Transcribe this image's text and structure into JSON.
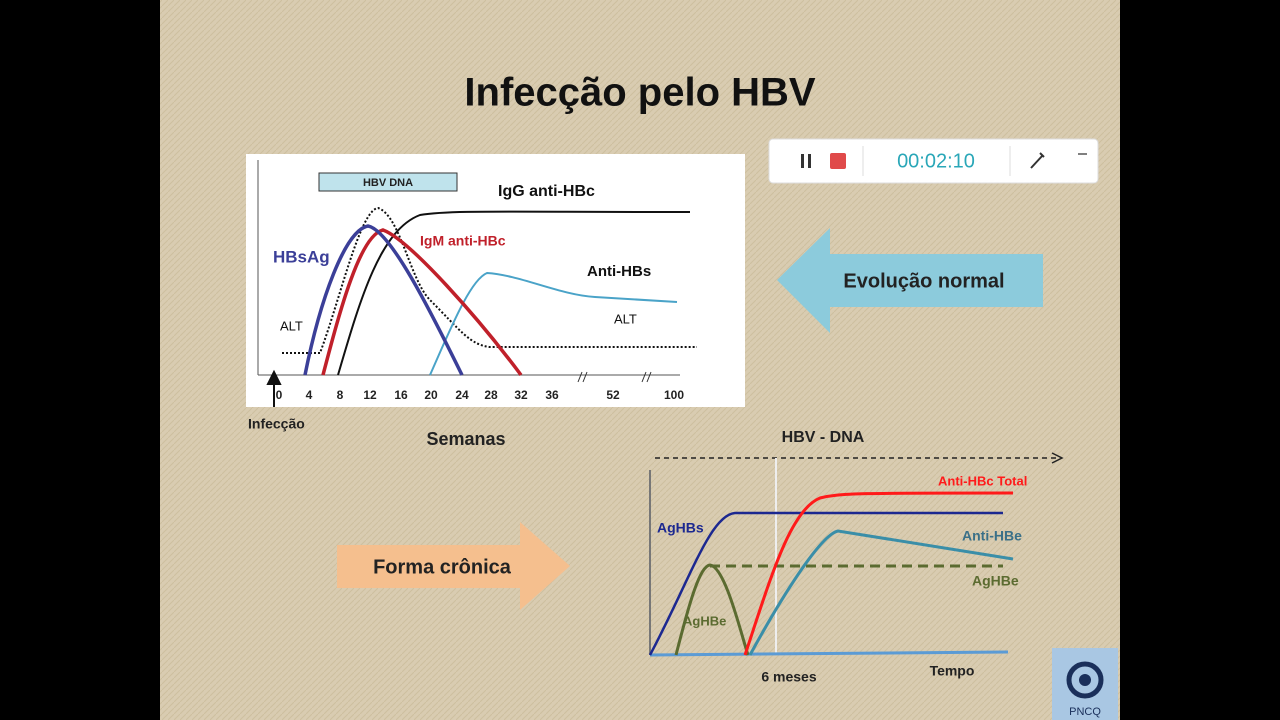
{
  "title": "Infecção pelo HBV",
  "recorder": {
    "timer": "00:02:10"
  },
  "acute_chart": {
    "band": "HBV DNA",
    "series_labels": {
      "igg": "IgG anti-HBc",
      "igm": "IgM anti-HBc",
      "hbsag": "HBsAg",
      "antihbs": "Anti-HBs",
      "alt_left": "ALT",
      "alt_right": "ALT"
    },
    "xticks": [
      "0",
      "4",
      "8",
      "12",
      "16",
      "20",
      "24",
      "28",
      "32",
      "36",
      "52",
      "100"
    ],
    "start_label": "Infecção",
    "axis_title": "Semanas"
  },
  "normal_arrow": "Evolução normal",
  "chronic_arrow": "Forma crônica",
  "chronic_chart": {
    "title": "HBV - DNA",
    "series_labels": {
      "antihbc": "Anti-HBc Total",
      "aghbs": "AgHBs",
      "antihbe": "Anti-HBe",
      "aghbe_right": "AgHBe",
      "aghbe_left": "AgHBe"
    },
    "mark_label": "6 meses",
    "axis_title": "Tempo"
  },
  "logo": "PNCQ"
}
